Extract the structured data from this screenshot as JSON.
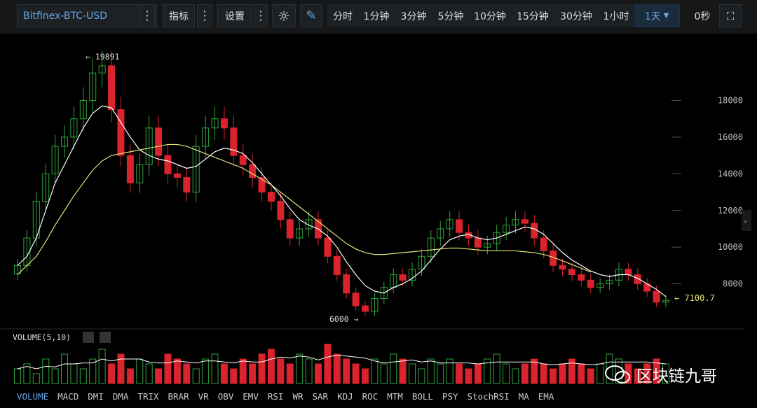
{
  "toolbar": {
    "symbol": "Bitfinex-BTC-USD",
    "indicators_label": "指标",
    "settings_label": "设置",
    "timeframes": [
      "分时",
      "1分钟",
      "3分钟",
      "5分钟",
      "10分钟",
      "15分钟",
      "30分钟",
      "1小时",
      "1天"
    ],
    "selected_timeframe": "1天",
    "countdown": "0秒"
  },
  "chart": {
    "high_label": "19891",
    "low_label": "6000",
    "last_price_label": "7100.7",
    "y_ticks": [
      "18000",
      "16000",
      "14000",
      "12000",
      "10000",
      "8000"
    ],
    "volume_label": "VOLUME(5,10)"
  },
  "indicator_tabs": [
    "VOLUME",
    "MACD",
    "DMI",
    "DMA",
    "TRIX",
    "BRAR",
    "VR",
    "OBV",
    "EMV",
    "RSI",
    "WR",
    "SAR",
    "KDJ",
    "ROC",
    "MTM",
    "BOLL",
    "PSY",
    "StochRSI",
    "MA",
    "EMA"
  ],
  "active_indicator": "VOLUME",
  "watermark": "区块链九哥",
  "colors": {
    "up": "#2fa43c",
    "down": "#d9232d",
    "ma_short": "#ffffff",
    "ma_long": "#e8e27a",
    "accent": "#5fa5e6"
  },
  "chart_data": {
    "type": "candlestick",
    "series": [
      {
        "name": "price",
        "values": [
          9000,
          10500,
          12500,
          14000,
          15500,
          16000,
          17000,
          18000,
          19500,
          19891,
          17500,
          15000,
          13500,
          14500,
          16500,
          15000,
          14000,
          13800,
          13000,
          15500,
          16500,
          17000,
          16500,
          15000,
          14500,
          13800,
          13000,
          12500,
          11500,
          10500,
          11000,
          11500,
          10500,
          9500,
          8500,
          7500,
          6800,
          6500,
          7200,
          7800,
          8500,
          8200,
          8800,
          9500,
          10500,
          11000,
          11500,
          10800,
          10500,
          10000,
          10200,
          10800,
          11200,
          11500,
          11300,
          10500,
          9800,
          9000,
          8800,
          8500,
          8200,
          7800,
          8000,
          8200,
          8800,
          8500,
          8000,
          7600,
          7000,
          7100.7
        ]
      },
      {
        "name": "ma_short",
        "values": [
          9000,
          9500,
          10500,
          12000,
          13500,
          14500,
          15500,
          16500,
          17300,
          17700,
          17600,
          16800,
          16000,
          15300,
          15000,
          14800,
          14700,
          14500,
          14300,
          14400,
          14800,
          15200,
          15400,
          15300,
          15100,
          14600,
          14000,
          13400,
          12800,
          12100,
          11500,
          11200,
          11000,
          10600,
          10000,
          9200,
          8500,
          7900,
          7600,
          7500,
          7800,
          8000,
          8300,
          8700,
          9300,
          9900,
          10400,
          10600,
          10700,
          10500,
          10400,
          10500,
          10700,
          10900,
          11100,
          11000,
          10700,
          10200,
          9700,
          9300,
          9000,
          8700,
          8500,
          8400,
          8500,
          8500,
          8300,
          8000,
          7700,
          7300
        ]
      },
      {
        "name": "ma_long",
        "values": [
          8500,
          9000,
          9500,
          10300,
          11200,
          12000,
          12800,
          13500,
          14200,
          14700,
          15000,
          15100,
          15200,
          15300,
          15400,
          15500,
          15600,
          15600,
          15500,
          15300,
          15100,
          14900,
          14700,
          14500,
          14300,
          14000,
          13700,
          13400,
          13000,
          12600,
          12200,
          11800,
          11400,
          11000,
          10600,
          10200,
          9900,
          9700,
          9600,
          9600,
          9650,
          9700,
          9750,
          9800,
          9850,
          9900,
          9950,
          9950,
          9900,
          9850,
          9800,
          9800,
          9800,
          9800,
          9750,
          9700,
          9600,
          9450,
          9250,
          9050,
          8850,
          8650
        ]
      }
    ],
    "ylim": [
      6000,
      20500
    ],
    "volume": [
      3,
      4,
      2,
      5,
      3,
      6,
      4,
      3,
      5,
      7,
      4,
      6,
      3,
      5,
      4,
      3,
      6,
      5,
      4,
      3,
      5,
      6,
      4,
      3,
      5,
      4,
      6,
      7,
      5,
      4,
      6,
      5,
      4,
      8,
      6,
      5,
      4,
      3,
      5,
      4,
      6,
      5,
      4,
      3,
      5,
      4,
      5,
      4,
      3,
      4,
      5,
      6,
      4,
      3,
      4,
      5,
      4,
      3,
      4,
      5,
      4,
      3,
      4,
      6,
      5,
      4,
      3,
      4,
      5,
      4
    ]
  }
}
